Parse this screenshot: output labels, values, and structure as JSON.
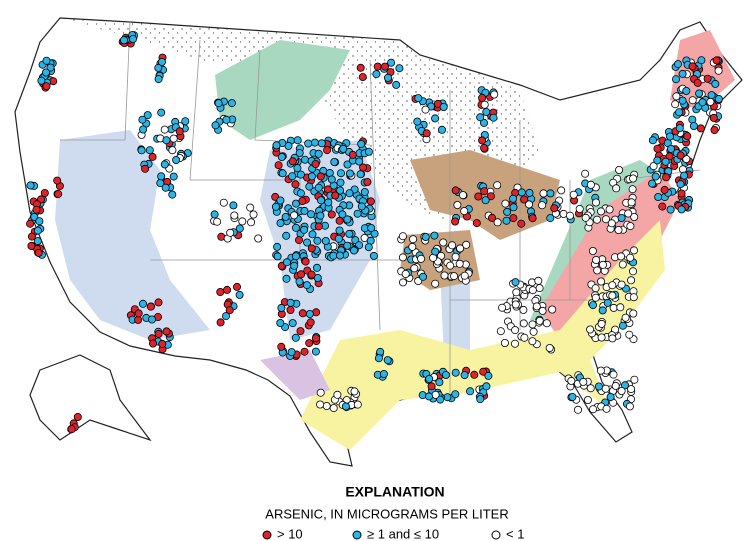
{
  "legend": {
    "title": "EXPLANATION",
    "subtitle": "ARSENIC, IN MICROGRAMS PER LITER",
    "items": [
      "> 10",
      "≥ 1 and ≤ 10",
      "< 1"
    ]
  }
}
